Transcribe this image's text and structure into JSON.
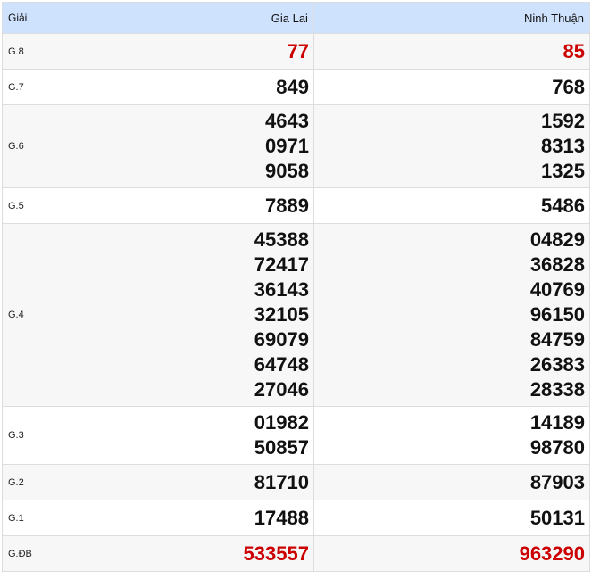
{
  "header": {
    "label_col": "Giải",
    "provinces": [
      "Gia Lai",
      "Ninh Thuận"
    ]
  },
  "colors": {
    "header_bg": "#cfe2fd",
    "highlight": "#cc0000"
  },
  "rows": [
    {
      "label": "G.8",
      "highlight": true,
      "values": [
        [
          "77"
        ],
        [
          "85"
        ]
      ]
    },
    {
      "label": "G.7",
      "values": [
        [
          "849"
        ],
        [
          "768"
        ]
      ]
    },
    {
      "label": "G.6",
      "values": [
        [
          "4643",
          "0971",
          "9058"
        ],
        [
          "1592",
          "8313",
          "1325"
        ]
      ]
    },
    {
      "label": "G.5",
      "values": [
        [
          "7889"
        ],
        [
          "5486"
        ]
      ]
    },
    {
      "label": "G.4",
      "values": [
        [
          "45388",
          "72417",
          "36143",
          "32105",
          "69079",
          "64748",
          "27046"
        ],
        [
          "04829",
          "36828",
          "40769",
          "96150",
          "84759",
          "26383",
          "28338"
        ]
      ]
    },
    {
      "label": "G.3",
      "values": [
        [
          "01982",
          "50857"
        ],
        [
          "14189",
          "98780"
        ]
      ]
    },
    {
      "label": "G.2",
      "values": [
        [
          "81710"
        ],
        [
          "87903"
        ]
      ]
    },
    {
      "label": "G.1",
      "values": [
        [
          "17488"
        ],
        [
          "50131"
        ]
      ]
    },
    {
      "label": "G.ĐB",
      "highlight": true,
      "values": [
        [
          "533557"
        ],
        [
          "963290"
        ]
      ]
    }
  ]
}
